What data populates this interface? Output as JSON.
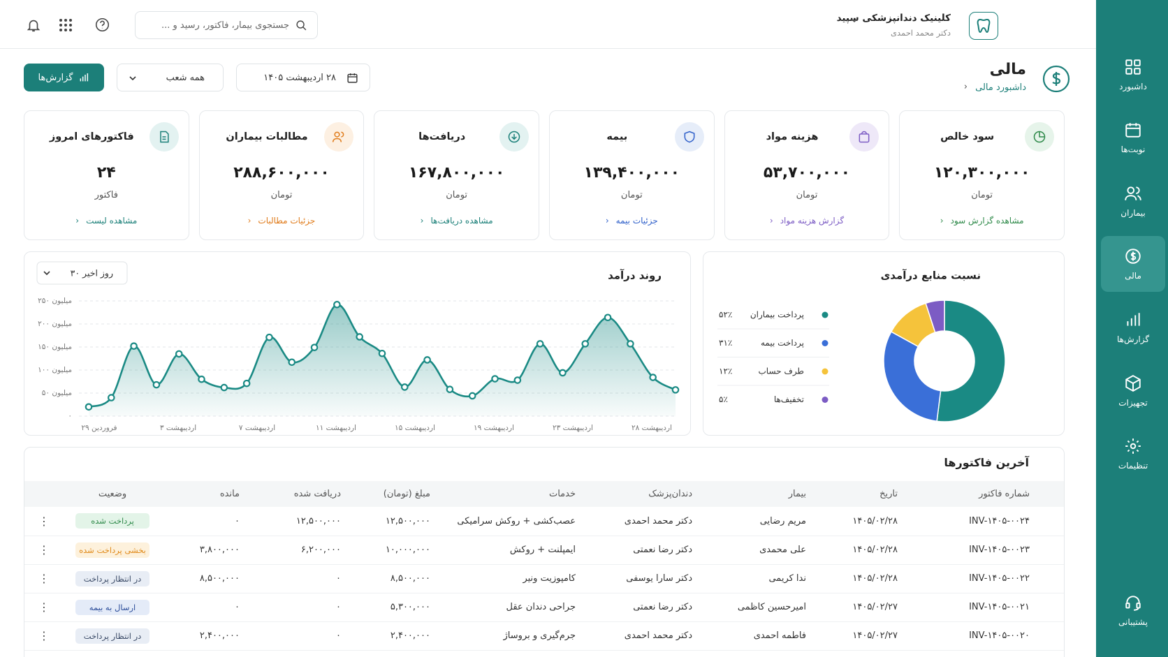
{
  "header": {
    "clinic_name": "کلینیک دندانپزشکی سپید",
    "doctor": "دکتر محمد احمدی",
    "search_placeholder": "جستجوی بیمار، فاکتور، رسید و ..."
  },
  "page": {
    "title": "مالی",
    "breadcrumb": "داشبورد مالی",
    "date": "۲۸ اردیبهشت ۱۴۰۵",
    "branch": "همه شعب",
    "reports_button": "گزارش‌ها"
  },
  "sidebar": {
    "items": [
      "داشبورد",
      "نوبت‌ها",
      "بیماران",
      "مالی",
      "گزارش‌ها",
      "تجهیزات",
      "تنظیمات",
      "پشتیبانی"
    ]
  },
  "cards": [
    {
      "title": "سود خالص",
      "value": "۱۲۰,۳۰۰,۰۰۰",
      "unit": "تومان",
      "link": "مشاهده گزارش سود"
    },
    {
      "title": "هزینه مواد",
      "value": "۵۳,۷۰۰,۰۰۰",
      "unit": "تومان",
      "link": "گزارش هزینه مواد"
    },
    {
      "title": "بیمه",
      "value": "۱۳۹,۴۰۰,۰۰۰",
      "unit": "تومان",
      "link": "جزئیات بیمه"
    },
    {
      "title": "دریافت‌ها",
      "value": "۱۶۷,۸۰۰,۰۰۰",
      "unit": "تومان",
      "link": "مشاهده دریافت‌ها"
    },
    {
      "title": "مطالبات بیماران",
      "value": "۲۸۸,۶۰۰,۰۰۰",
      "unit": "تومان",
      "link": "جزئیات مطالبات"
    },
    {
      "title": "فاکتورهای امروز",
      "value": "۲۴",
      "unit": "فاکتور",
      "link": "مشاهده لیست"
    }
  ],
  "revenue_chart": {
    "type": "line",
    "title": "روند درآمد",
    "range": "۳۰ روز اخیر",
    "color": "#1a8a84",
    "grid": true,
    "values": [
      20,
      40,
      152,
      68,
      135,
      80,
      62,
      71,
      171,
      117,
      149,
      242,
      172,
      136,
      63,
      122,
      58,
      44,
      81,
      78,
      157,
      94,
      157,
      214,
      157,
      84,
      57
    ],
    "x_labels": [
      "۲۹ فروردین",
      "۳ اردیبهشت",
      "۷ اردیبهشت",
      "۱۱ اردیبهشت",
      "۱۵ اردیبهشت",
      "۱۹ اردیبهشت",
      "۲۳ اردیبهشت",
      "۲۸ اردیبهشت"
    ],
    "ylim": [
      0,
      250
    ],
    "yticks": [
      {
        "value": 0,
        "label": "۰"
      },
      {
        "value": 50,
        "label": "۵۰ میلیون"
      },
      {
        "value": 100,
        "label": "۱۰۰ میلیون"
      },
      {
        "value": 150,
        "label": "۱۵۰ میلیون"
      },
      {
        "value": 200,
        "label": "۲۰۰ میلیون"
      },
      {
        "value": 250,
        "label": "۲۵۰ میلیون"
      }
    ]
  },
  "sources_chart": {
    "type": "donut",
    "title": "نسبت منابع درآمدی",
    "categories": [
      "پرداخت بیماران",
      "پرداخت بیمه",
      "طرف حساب",
      "تخفیف‌ها"
    ],
    "values": [
      52,
      31,
      12,
      5
    ],
    "value_labels": [
      "۵۲٪",
      "۳۱٪",
      "۱۲٪",
      "۵٪"
    ],
    "colors": [
      "#1a8a84",
      "#3a6fd8",
      "#f5c33b",
      "#7c5cc4"
    ]
  },
  "table": {
    "title": "آخرین فاکتورها",
    "columns": [
      "شماره فاکتور",
      "تاریخ",
      "بیمار",
      "دندان‌پزشک",
      "خدمات",
      "مبلغ (تومان)",
      "دریافت شده",
      "مانده",
      "وضعیت"
    ],
    "rows": [
      [
        "INV-۱۴۰۵-۰۰۲۴",
        "۱۴۰۵/۰۲/۲۸",
        "مریم رضایی",
        "دکتر محمد احمدی",
        "عصب‌کشی + روکش سرامیکی",
        "۱۲,۵۰۰,۰۰۰",
        "۱۲,۵۰۰,۰۰۰",
        "۰",
        "پرداخت شده"
      ],
      [
        "INV-۱۴۰۵-۰۰۲۳",
        "۱۴۰۵/۰۲/۲۸",
        "علی محمدی",
        "دکتر رضا نعمتی",
        "ایمپلنت + روکش",
        "۱۰,۰۰۰,۰۰۰",
        "۶,۲۰۰,۰۰۰",
        "۳,۸۰۰,۰۰۰",
        "بخشی پرداخت شده"
      ],
      [
        "INV-۱۴۰۵-۰۰۲۲",
        "۱۴۰۵/۰۲/۲۸",
        "ندا کریمی",
        "دکتر سارا یوسفی",
        "کامپوزیت ونیر",
        "۸,۵۰۰,۰۰۰",
        "۰",
        "۸,۵۰۰,۰۰۰",
        "در انتظار پرداخت"
      ],
      [
        "INV-۱۴۰۵-۰۰۲۱",
        "۱۴۰۵/۰۲/۲۷",
        "امیرحسین کاظمی",
        "دکتر رضا نعمتی",
        "جراحی دندان عقل",
        "۵,۳۰۰,۰۰۰",
        "۰",
        "۰",
        "ارسال به بیمه"
      ],
      [
        "INV-۱۴۰۵-۰۰۲۰",
        "۱۴۰۵/۰۲/۲۷",
        "فاطمه احمدی",
        "دکتر محمد احمدی",
        "جرم‌گیری و بروساژ",
        "۲,۴۰۰,۰۰۰",
        "۰",
        "۲,۴۰۰,۰۰۰",
        "در انتظار پرداخت"
      ]
    ]
  }
}
